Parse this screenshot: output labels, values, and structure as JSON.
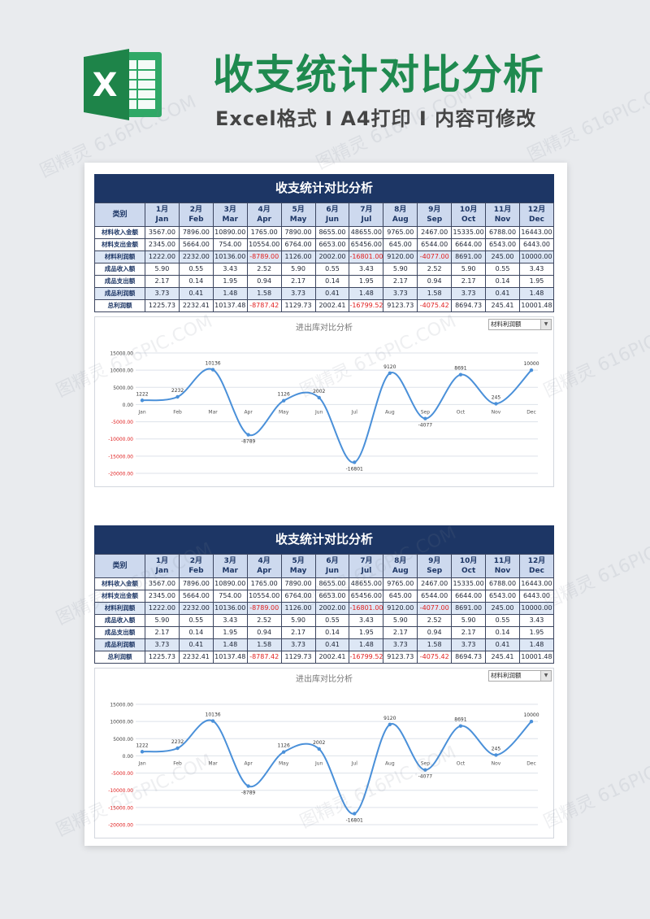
{
  "header": {
    "title": "收支统计对比分析",
    "subtitle": "Excel格式 I A4打印 I 内容可修改",
    "icon_letter": "X"
  },
  "watermark_text": "图精灵 616PIC.COM",
  "colors": {
    "brand_green": "#1f8a4f",
    "header_navy": "#1d3665",
    "line_blue": "#4a90d9",
    "negative_red": "#e02020"
  },
  "sections": [
    {
      "title": "收支统计对比分析",
      "table": {
        "header_label": "类别",
        "months": [
          {
            "cn": "1月",
            "en": "Jan"
          },
          {
            "cn": "2月",
            "en": "Feb"
          },
          {
            "cn": "3月",
            "en": "Mar"
          },
          {
            "cn": "4月",
            "en": "Apr"
          },
          {
            "cn": "5月",
            "en": "May"
          },
          {
            "cn": "6月",
            "en": "Jun"
          },
          {
            "cn": "7月",
            "en": "Jul"
          },
          {
            "cn": "8月",
            "en": "Aug"
          },
          {
            "cn": "9月",
            "en": "Sep"
          },
          {
            "cn": "10月",
            "en": "Oct"
          },
          {
            "cn": "11月",
            "en": "Nov"
          },
          {
            "cn": "12月",
            "en": "Dec"
          }
        ],
        "rows": [
          {
            "label": "材料收入金额",
            "hl": false,
            "values": [
              "3567.00",
              "7896.00",
              "10890.00",
              "1765.00",
              "7890.00",
              "8655.00",
              "48655.00",
              "9765.00",
              "2467.00",
              "15335.00",
              "6788.00",
              "16443.00"
            ]
          },
          {
            "label": "材料支出金额",
            "hl": false,
            "values": [
              "2345.00",
              "5664.00",
              "754.00",
              "10554.00",
              "6764.00",
              "6653.00",
              "65456.00",
              "645.00",
              "6544.00",
              "6644.00",
              "6543.00",
              "6443.00"
            ]
          },
          {
            "label": "材料利润额",
            "hl": true,
            "values": [
              "1222.00",
              "2232.00",
              "10136.00",
              "-8789.00",
              "1126.00",
              "2002.00",
              "-16801.00",
              "9120.00",
              "-4077.00",
              "8691.00",
              "245.00",
              "10000.00"
            ]
          },
          {
            "label": "成品收入额",
            "hl": false,
            "values": [
              "5.90",
              "0.55",
              "3.43",
              "2.52",
              "5.90",
              "0.55",
              "3.43",
              "5.90",
              "2.52",
              "5.90",
              "0.55",
              "3.43"
            ]
          },
          {
            "label": "成品支出额",
            "hl": false,
            "values": [
              "2.17",
              "0.14",
              "1.95",
              "0.94",
              "2.17",
              "0.14",
              "1.95",
              "2.17",
              "0.94",
              "2.17",
              "0.14",
              "1.95"
            ]
          },
          {
            "label": "成品利润额",
            "hl": true,
            "values": [
              "3.73",
              "0.41",
              "1.48",
              "1.58",
              "3.73",
              "0.41",
              "1.48",
              "3.73",
              "1.58",
              "3.73",
              "0.41",
              "1.48"
            ]
          },
          {
            "label": "总利润额",
            "hl": false,
            "values": [
              "1225.73",
              "2232.41",
              "10137.48",
              "-8787.42",
              "1129.73",
              "2002.41",
              "-16799.52",
              "9123.73",
              "-4075.42",
              "8694.73",
              "245.41",
              "10001.48"
            ]
          }
        ]
      },
      "chart_data": {
        "type": "line",
        "title": "进出库对比分析",
        "selector_value": "材料利润额",
        "categories": [
          "Jan",
          "Feb",
          "Mar",
          "Apr",
          "May",
          "Jun",
          "Jul",
          "Aug",
          "Sep",
          "Oct",
          "Nov",
          "Dec"
        ],
        "values": [
          1222,
          2232,
          10136,
          -8789,
          1126,
          2002,
          -16801,
          9120,
          -4077,
          8691,
          245,
          10000
        ],
        "point_labels": [
          "1222",
          "2232",
          "10136",
          "-8789",
          "1126",
          "2002",
          "-16801",
          "9120",
          "-4077",
          "8691",
          "245",
          "10000"
        ],
        "ylim": [
          -20000,
          15000
        ],
        "yticks": [
          "15000.00",
          "10000.00",
          "5000.00",
          "0.00",
          "-5000.00",
          "-10000.00",
          "-15000.00",
          "-20000.00"
        ],
        "ytick_values": [
          15000,
          10000,
          5000,
          0,
          -5000,
          -10000,
          -15000,
          -20000
        ],
        "grid": true,
        "smooth": true
      }
    },
    {
      "title": "收支统计对比分析",
      "table": {
        "header_label": "类别",
        "months": [
          {
            "cn": "1月",
            "en": "Jan"
          },
          {
            "cn": "2月",
            "en": "Feb"
          },
          {
            "cn": "3月",
            "en": "Mar"
          },
          {
            "cn": "4月",
            "en": "Apr"
          },
          {
            "cn": "5月",
            "en": "May"
          },
          {
            "cn": "6月",
            "en": "Jun"
          },
          {
            "cn": "7月",
            "en": "Jul"
          },
          {
            "cn": "8月",
            "en": "Aug"
          },
          {
            "cn": "9月",
            "en": "Sep"
          },
          {
            "cn": "10月",
            "en": "Oct"
          },
          {
            "cn": "11月",
            "en": "Nov"
          },
          {
            "cn": "12月",
            "en": "Dec"
          }
        ],
        "rows": [
          {
            "label": "材料收入金额",
            "hl": false,
            "values": [
              "3567.00",
              "7896.00",
              "10890.00",
              "1765.00",
              "7890.00",
              "8655.00",
              "48655.00",
              "9765.00",
              "2467.00",
              "15335.00",
              "6788.00",
              "16443.00"
            ]
          },
          {
            "label": "材料支出金额",
            "hl": false,
            "values": [
              "2345.00",
              "5664.00",
              "754.00",
              "10554.00",
              "6764.00",
              "6653.00",
              "65456.00",
              "645.00",
              "6544.00",
              "6644.00",
              "6543.00",
              "6443.00"
            ]
          },
          {
            "label": "材料利润额",
            "hl": true,
            "values": [
              "1222.00",
              "2232.00",
              "10136.00",
              "-8789.00",
              "1126.00",
              "2002.00",
              "-16801.00",
              "9120.00",
              "-4077.00",
              "8691.00",
              "245.00",
              "10000.00"
            ]
          },
          {
            "label": "成品收入额",
            "hl": false,
            "values": [
              "5.90",
              "0.55",
              "3.43",
              "2.52",
              "5.90",
              "0.55",
              "3.43",
              "5.90",
              "2.52",
              "5.90",
              "0.55",
              "3.43"
            ]
          },
          {
            "label": "成品支出额",
            "hl": false,
            "values": [
              "2.17",
              "0.14",
              "1.95",
              "0.94",
              "2.17",
              "0.14",
              "1.95",
              "2.17",
              "0.94",
              "2.17",
              "0.14",
              "1.95"
            ]
          },
          {
            "label": "成品利润额",
            "hl": true,
            "values": [
              "3.73",
              "0.41",
              "1.48",
              "1.58",
              "3.73",
              "0.41",
              "1.48",
              "3.73",
              "1.58",
              "3.73",
              "0.41",
              "1.48"
            ]
          },
          {
            "label": "总利润额",
            "hl": false,
            "values": [
              "1225.73",
              "2232.41",
              "10137.48",
              "-8787.42",
              "1129.73",
              "2002.41",
              "-16799.52",
              "9123.73",
              "-4075.42",
              "8694.73",
              "245.41",
              "10001.48"
            ]
          }
        ]
      },
      "chart_data": {
        "type": "line",
        "title": "进出库对比分析",
        "selector_value": "材料利润额",
        "categories": [
          "Jan",
          "Feb",
          "Mar",
          "Apr",
          "May",
          "Jun",
          "Jul",
          "Aug",
          "Sep",
          "Oct",
          "Nov",
          "Dec"
        ],
        "values": [
          1222,
          2232,
          10136,
          -8789,
          1126,
          2002,
          -16801,
          9120,
          -4077,
          8691,
          245,
          10000
        ],
        "point_labels": [
          "1222",
          "2232",
          "10136",
          "-8789",
          "1126",
          "2002",
          "-16801",
          "9120",
          "-4077",
          "8691",
          "245",
          "10000"
        ],
        "ylim": [
          -20000,
          15000
        ],
        "yticks": [
          "15000.00",
          "10000.00",
          "5000.00",
          "0.00",
          "-5000.00",
          "-10000.00",
          "-15000.00",
          "-20000.00"
        ],
        "ytick_values": [
          15000,
          10000,
          5000,
          0,
          -5000,
          -10000,
          -15000,
          -20000
        ],
        "grid": true,
        "smooth": true
      }
    }
  ]
}
